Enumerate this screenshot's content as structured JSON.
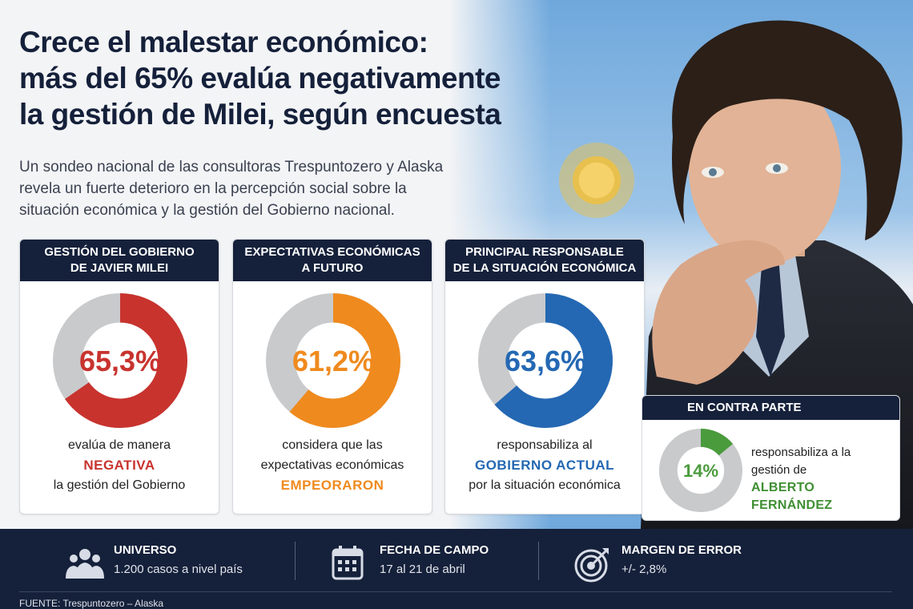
{
  "title_lines": [
    "Crece el malestar económico:",
    "más del 65% evalúa negativamente",
    "la gestión de Milei, según encuesta"
  ],
  "subtitle_lines": [
    "Un sondeo nacional de las consultoras Trespuntozero y Alaska",
    "revela un fuerte deterioro en la percepción social sobre la",
    "situación económica y la gestión del Gobierno nacional."
  ],
  "colors": {
    "navy": "#15203a",
    "red": "#c8332e",
    "orange": "#ef8a1e",
    "blue": "#2468b3",
    "green": "#4a9b3c",
    "gray": "#c9cacc"
  },
  "cards": [
    {
      "head": [
        "GESTIÓN DEL GOBIERNO",
        "DE JAVIER MILEI"
      ],
      "pct_label": "65,3%",
      "desc1": "evalúa de manera",
      "highlight": "NEGATIVA",
      "desc2": "la gestión del Gobierno",
      "color": "#c8332e"
    },
    {
      "head": [
        "EXPECTATIVAS ECONÓMICAS",
        "A FUTURO"
      ],
      "pct_label": "61,2%",
      "desc1": "considera que las",
      "desc2": "expectativas económicas",
      "highlight": "EMPEORARON",
      "color": "#ef8a1e"
    },
    {
      "head": [
        "PRINCIPAL RESPONSABLE",
        "DE LA SITUACIÓN ECONÓMICA"
      ],
      "pct_label": "63,6%",
      "desc1": "responsabiliza al",
      "highlight": "GOBIERNO ACTUAL",
      "desc2": "por la situación económica",
      "color": "#2468b3"
    }
  ],
  "side": {
    "head": "EN CONTRA PARTE",
    "pct_label": "14%",
    "line1": "responsabiliza a la",
    "line2": "gestión de",
    "highlight": "ALBERTO FERNÁNDEZ",
    "color": "#4a9b3c"
  },
  "footer": {
    "items": [
      {
        "label": "UNIVERSO",
        "value": "1.200 casos a nivel país",
        "icon": "people-icon"
      },
      {
        "label": "FECHA DE CAMPO",
        "value": "17 al 21 de abril",
        "icon": "calendar-icon"
      },
      {
        "label": "MARGEN DE ERROR",
        "value": "+/- 2,8%",
        "icon": "target-icon"
      }
    ],
    "source": "FUENTE: Trespuntozero – Alaska"
  },
  "chart_data": [
    {
      "type": "pie",
      "title": "GESTIÓN DEL GOBIERNO DE JAVIER MILEI",
      "categories": [
        "NEGATIVA",
        ""
      ],
      "values": [
        65.3,
        34.7
      ]
    },
    {
      "type": "pie",
      "title": "EXPECTATIVAS ECONÓMICAS A FUTURO",
      "categories": [
        "EMPEORARON",
        ""
      ],
      "values": [
        61.2,
        38.8
      ]
    },
    {
      "type": "pie",
      "title": "PRINCIPAL RESPONSABLE DE LA SITUACIÓN ECONÓMICA",
      "categories": [
        "GOBIERNO ACTUAL",
        ""
      ],
      "values": [
        63.6,
        36.4
      ]
    },
    {
      "type": "pie",
      "title": "EN CONTRA PARTE",
      "categories": [
        "ALBERTO FERNÁNDEZ",
        ""
      ],
      "values": [
        14,
        86
      ]
    }
  ]
}
